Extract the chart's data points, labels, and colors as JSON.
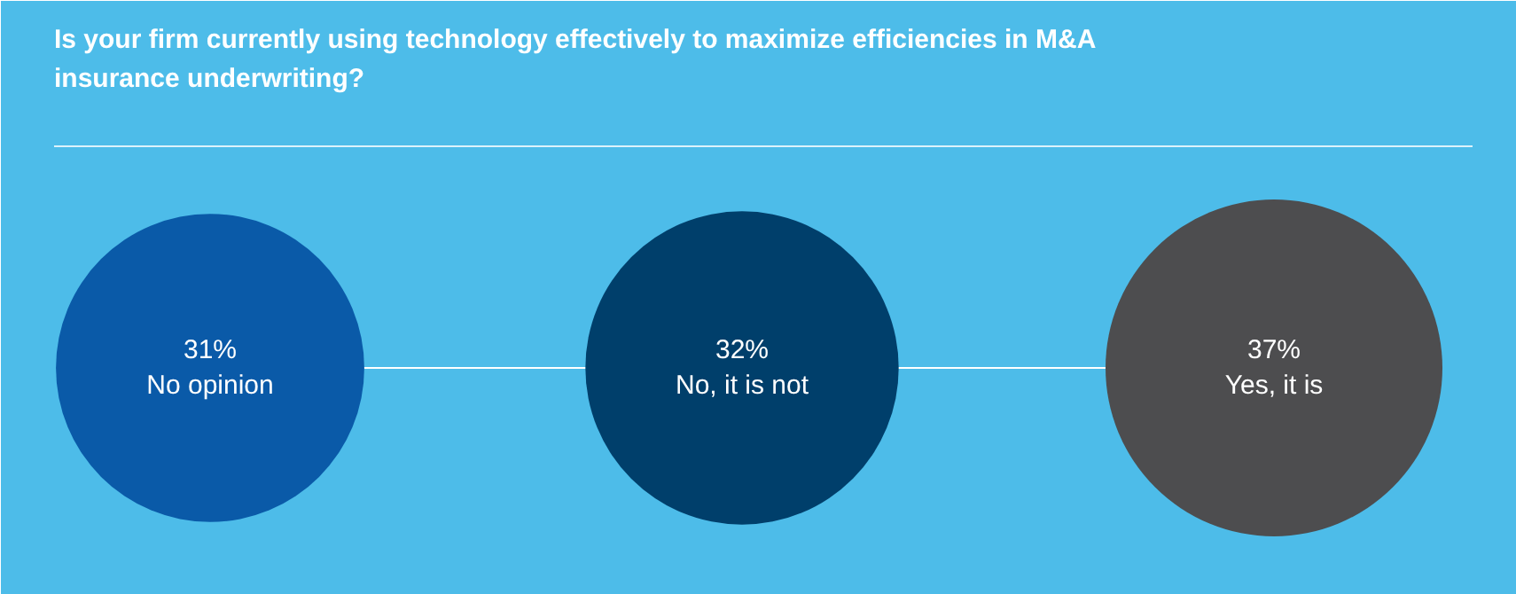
{
  "chart_data": {
    "type": "other",
    "title": "Is your firm currently using technology effectively to maximize efficiencies in M&A insurance underwriting?",
    "categories": [
      "No opinion",
      "No, it is not",
      "Yes, it is"
    ],
    "values": [
      31,
      32,
      37
    ],
    "value_labels": [
      "31%",
      "32%",
      "37%"
    ],
    "colors": [
      "#0a5aa8",
      "#003f6b",
      "#4d4d4f"
    ]
  }
}
